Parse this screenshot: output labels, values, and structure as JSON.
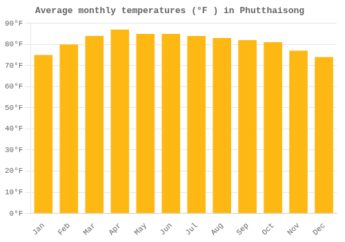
{
  "chart_data": {
    "type": "bar",
    "title": "Average monthly temperatures (°F ) in Phutthaisong",
    "categories": [
      "Jan",
      "Feb",
      "Mar",
      "Apr",
      "May",
      "Jun",
      "Jul",
      "Aug",
      "Sep",
      "Oct",
      "Nov",
      "Dec"
    ],
    "values": [
      75,
      80,
      84,
      87,
      85,
      85,
      84,
      83,
      82,
      81,
      77,
      74
    ],
    "color": "#FDB813",
    "ylim": [
      0,
      90
    ],
    "yticks": [
      {
        "value": 0,
        "label": "0°F"
      },
      {
        "value": 10,
        "label": "10°F"
      },
      {
        "value": 20,
        "label": "20°F"
      },
      {
        "value": 30,
        "label": "30°F"
      },
      {
        "value": 40,
        "label": "40°F"
      },
      {
        "value": 50,
        "label": "50°F"
      },
      {
        "value": 60,
        "label": "60°F"
      },
      {
        "value": 70,
        "label": "70°F"
      },
      {
        "value": 80,
        "label": "80°F"
      },
      {
        "value": 90,
        "label": "90°F"
      }
    ],
    "grid": true
  }
}
